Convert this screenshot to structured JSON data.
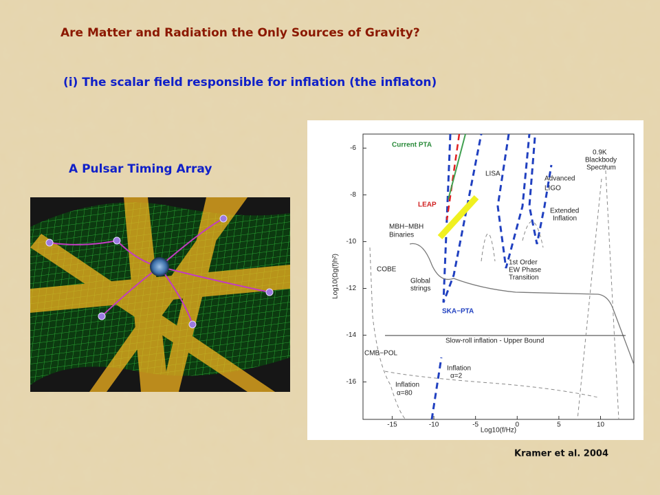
{
  "header": {
    "title": "Are Matter and Radiation the Only Sources of Gravity?",
    "subtitle": "(i) The scalar field responsible for inflation (the inflaton)"
  },
  "image_caption": "A Pulsar Timing Array",
  "figure": {
    "xlim": [
      -18.5,
      14
    ],
    "ylim": [
      -17.6,
      -5.4
    ],
    "xticks": [
      -15,
      -10,
      -5,
      0,
      5,
      10
    ],
    "yticks": [
      -6,
      -8,
      -10,
      -12,
      -14,
      -16
    ],
    "xlabel": "Log10(f/Hz)",
    "ylabel": "Log10(Ωg(f)h²)",
    "labels": [
      "Current PTA",
      "LEAP",
      "MBH−MBH",
      "Binaries",
      "LISA",
      "Advanced",
      "LIGO",
      "0.9K",
      "Blackbody",
      "Spectrum",
      "Extended",
      "Inflation",
      "COBE",
      "Global",
      "strings",
      "1st Order",
      "EW Phase",
      "Transition",
      "SKA−PTA",
      "Slow-roll inflation - Upper Bound",
      "CMB−POL",
      "Inflation",
      "α=2",
      "Inflation",
      "α=80"
    ]
  },
  "credit": "Kramer et al. 2004"
}
